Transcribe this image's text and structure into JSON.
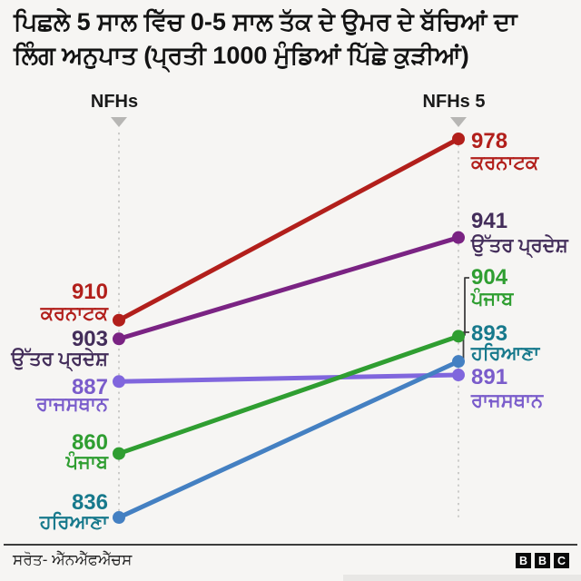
{
  "header": {
    "title_lines": [
      "ਪਿਛਲੇ 5 ਸਾਲ ਵਿੱਚ 0-5 ਸਾਲ ਤੱਕ ਦੇ ਉਮਰ ਦੇ ਬੱਚਿਆਂ ਦਾ",
      "ਲਿੰਗ ਅਨੁਪਾਤ (ਪ੍ਰਤੀ 1000 ਮੁੰਡਿਆਂ ਪਿੱਛੇ ਕੁੜੀਆਂ)"
    ]
  },
  "chart_data": {
    "type": "slope",
    "columns": [
      "NFHs",
      "NFHs 5"
    ],
    "series": [
      {
        "id": "karnataka",
        "name": "ਕਰਨਾਟਕ",
        "values": [
          910,
          978
        ],
        "line_color": "#b21f1b",
        "label_color": "#b21f1b"
      },
      {
        "id": "uttar-pradesh",
        "name": "ਉੱਤਰ ਪ੍ਰਦੇਸ਼",
        "values": [
          903,
          941
        ],
        "line_color": "#7a2383",
        "label_color": "#432d5a"
      },
      {
        "id": "rajasthan",
        "name": "ਰਾਜਸਥਾਨ",
        "values": [
          887,
          891
        ],
        "line_color": "#8066dd",
        "label_color": "#7a5ccb"
      },
      {
        "id": "punjab",
        "name": "ਪੰਜਾਬ",
        "values": [
          860,
          904
        ],
        "line_color": "#2f9e31",
        "label_color": "#2f9e31"
      },
      {
        "id": "haryana",
        "name": "ਹਰਿਆਣਾ",
        "values": [
          836,
          893
        ],
        "line_color": "#4480c2",
        "label_color": "#17798c"
      }
    ],
    "ylim": [
      836,
      978
    ],
    "grid": false,
    "legend": "inline-labels",
    "axis_marker_color": "#b7b6b4",
    "axis_dotted_color": "#c8c7c5",
    "connector_color": "#3f3f3f"
  },
  "footer": {
    "source": "ਸਰੋਤ- ਐੱਨਐੱਫਐੱਚਸ",
    "logo_letters": [
      "B",
      "B",
      "C"
    ]
  }
}
